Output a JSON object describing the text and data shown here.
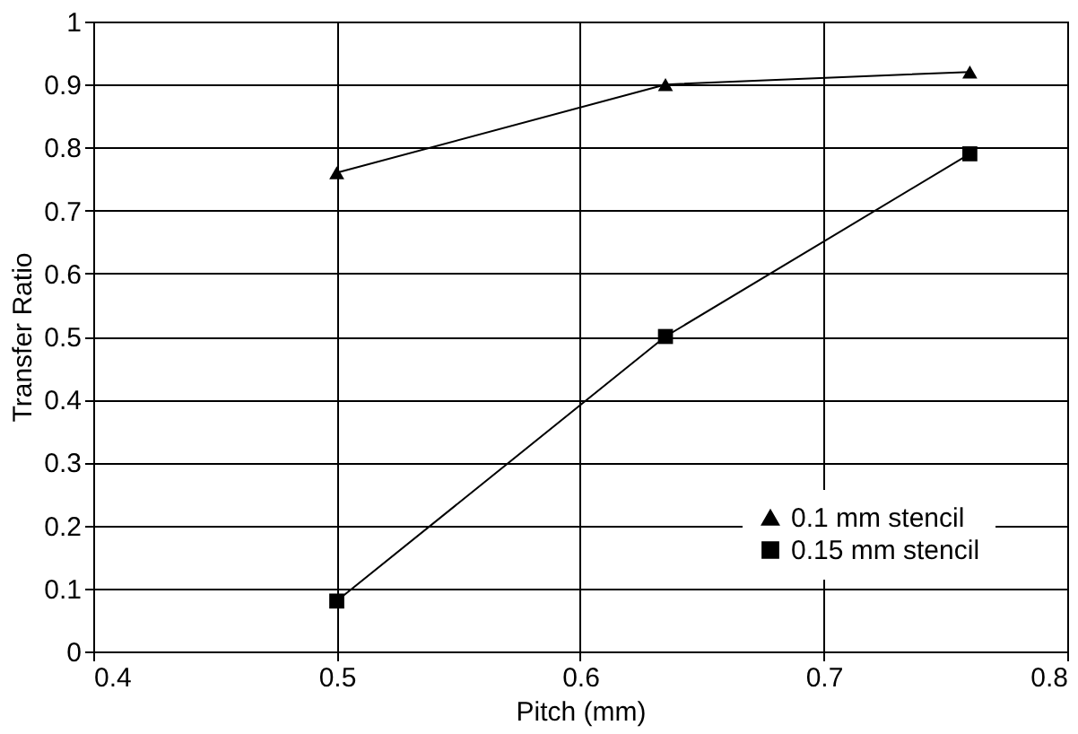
{
  "chart_data": {
    "type": "line",
    "xlabel": "Pitch (mm)",
    "ylabel": "Transfer Ratio",
    "xlim": [
      0.4,
      0.8
    ],
    "xticks": [
      0.4,
      0.5,
      0.6,
      0.7,
      0.8
    ],
    "ylim": [
      0,
      1
    ],
    "yticks": [
      0,
      0.1,
      0.2,
      0.3,
      0.4,
      0.5,
      0.6,
      0.7,
      0.8,
      0.9,
      1
    ],
    "grid": true,
    "legend": "bottom right",
    "line_style": "solid",
    "series": [
      {
        "name": "0.1 mm stencil",
        "color": "#000000",
        "marker": "triangle",
        "x": [
          0.5,
          0.635,
          0.76
        ],
        "values": [
          0.76,
          0.9,
          0.92
        ]
      },
      {
        "name": "0.15 mm stencil",
        "color": "#000000",
        "marker": "square",
        "x": [
          0.5,
          0.635,
          0.76
        ],
        "values": [
          0.08,
          0.5,
          0.79
        ]
      }
    ]
  }
}
